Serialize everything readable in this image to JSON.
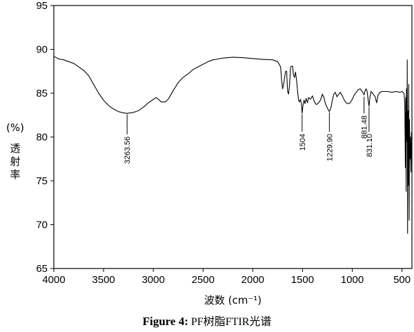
{
  "chart_data": {
    "type": "line",
    "title": "",
    "xlabel": "波数 (cm⁻¹)",
    "ylabel_unit": "(%)",
    "ylabel_chars": [
      "透",
      "射",
      "率"
    ],
    "xlim": [
      4000,
      400
    ],
    "ylim": [
      65,
      95
    ],
    "x_ticks": [
      4000,
      3500,
      3000,
      2500,
      2000,
      1500,
      1000,
      500
    ],
    "y_ticks": [
      65,
      70,
      75,
      80,
      85,
      90,
      95
    ],
    "grid": false,
    "series": [
      {
        "points": [
          [
            4000,
            89.2
          ],
          [
            3950,
            88.9
          ],
          [
            3900,
            88.8
          ],
          [
            3850,
            88.6
          ],
          [
            3800,
            88.4
          ],
          [
            3750,
            88.0
          ],
          [
            3700,
            87.6
          ],
          [
            3650,
            87.0
          ],
          [
            3600,
            86.0
          ],
          [
            3550,
            85.0
          ],
          [
            3500,
            84.2
          ],
          [
            3450,
            83.6
          ],
          [
            3400,
            83.2
          ],
          [
            3350,
            82.9
          ],
          [
            3300,
            82.75
          ],
          [
            3263,
            82.7
          ],
          [
            3200,
            82.8
          ],
          [
            3150,
            83.0
          ],
          [
            3100,
            83.4
          ],
          [
            3050,
            83.9
          ],
          [
            3000,
            84.3
          ],
          [
            2970,
            84.5
          ],
          [
            2950,
            84.3
          ],
          [
            2920,
            84.0
          ],
          [
            2880,
            84.0
          ],
          [
            2850,
            84.3
          ],
          [
            2800,
            85.3
          ],
          [
            2750,
            86.2
          ],
          [
            2700,
            86.8
          ],
          [
            2650,
            87.2
          ],
          [
            2600,
            87.7
          ],
          [
            2550,
            88.0
          ],
          [
            2500,
            88.3
          ],
          [
            2450,
            88.6
          ],
          [
            2400,
            88.8
          ],
          [
            2350,
            88.9
          ],
          [
            2300,
            89.0
          ],
          [
            2250,
            89.05
          ],
          [
            2200,
            89.1
          ],
          [
            2100,
            89.05
          ],
          [
            2000,
            88.95
          ],
          [
            1900,
            88.85
          ],
          [
            1800,
            88.8
          ],
          [
            1750,
            88.6
          ],
          [
            1720,
            88.0
          ],
          [
            1710,
            86.5
          ],
          [
            1700,
            85.5
          ],
          [
            1690,
            86.0
          ],
          [
            1680,
            86.8
          ],
          [
            1670,
            87.5
          ],
          [
            1660,
            87.5
          ],
          [
            1650,
            85.2
          ],
          [
            1640,
            84.9
          ],
          [
            1630,
            86.0
          ],
          [
            1620,
            88.0
          ],
          [
            1600,
            88.1
          ],
          [
            1590,
            87.0
          ],
          [
            1580,
            86.8
          ],
          [
            1570,
            87.4
          ],
          [
            1560,
            86.5
          ],
          [
            1550,
            85.3
          ],
          [
            1540,
            84.2
          ],
          [
            1530,
            84.0
          ],
          [
            1520,
            84.3
          ],
          [
            1510,
            83.7
          ],
          [
            1504,
            82.7
          ],
          [
            1495,
            83.6
          ],
          [
            1485,
            84.2
          ],
          [
            1475,
            83.8
          ],
          [
            1465,
            84.4
          ],
          [
            1450,
            83.9
          ],
          [
            1440,
            84.5
          ],
          [
            1420,
            84.3
          ],
          [
            1400,
            84.7
          ],
          [
            1380,
            84.0
          ],
          [
            1360,
            83.7
          ],
          [
            1340,
            83.9
          ],
          [
            1320,
            84.2
          ],
          [
            1300,
            84.9
          ],
          [
            1285,
            84.5
          ],
          [
            1270,
            83.8
          ],
          [
            1250,
            83.3
          ],
          [
            1230,
            82.9
          ],
          [
            1215,
            83.3
          ],
          [
            1200,
            84.2
          ],
          [
            1185,
            84.9
          ],
          [
            1170,
            85.1
          ],
          [
            1155,
            84.6
          ],
          [
            1140,
            84.8
          ],
          [
            1120,
            85.1
          ],
          [
            1100,
            84.7
          ],
          [
            1080,
            84.2
          ],
          [
            1060,
            83.9
          ],
          [
            1040,
            83.8
          ],
          [
            1020,
            83.9
          ],
          [
            1000,
            84.3
          ],
          [
            980,
            84.8
          ],
          [
            960,
            85.1
          ],
          [
            940,
            85.4
          ],
          [
            920,
            85.5
          ],
          [
            900,
            85.2
          ],
          [
            881,
            84.8
          ],
          [
            870,
            85.3
          ],
          [
            860,
            85.5
          ],
          [
            850,
            85.2
          ],
          [
            840,
            84.2
          ],
          [
            831,
            83.5
          ],
          [
            822,
            84.6
          ],
          [
            810,
            85.2
          ],
          [
            790,
            84.9
          ],
          [
            770,
            84.6
          ],
          [
            755,
            83.9
          ],
          [
            740,
            84.8
          ],
          [
            720,
            85.1
          ],
          [
            700,
            85.2
          ],
          [
            650,
            85.2
          ],
          [
            600,
            85.1
          ],
          [
            560,
            85.2
          ],
          [
            520,
            85.1
          ],
          [
            500,
            85.2
          ],
          [
            480,
            85.0
          ],
          [
            472,
            84.0
          ],
          [
            466,
            76.5
          ],
          [
            462,
            84.5
          ],
          [
            458,
            73.8
          ],
          [
            455,
            85.5
          ],
          [
            450,
            79.5
          ],
          [
            447,
            88.8
          ],
          [
            444,
            69.0
          ],
          [
            440,
            83.0
          ],
          [
            436,
            74.5
          ],
          [
            432,
            86.0
          ],
          [
            428,
            70.5
          ],
          [
            424,
            82.0
          ],
          [
            420,
            77.5
          ],
          [
            415,
            80.0
          ],
          [
            410,
            76.0
          ],
          [
            405,
            80.5
          ],
          [
            400,
            78.0
          ]
        ]
      }
    ],
    "peak_labels": [
      {
        "x": 3263.56,
        "label": "3263.56",
        "y_tip": 82.6,
        "y_line_end": 80.3
      },
      {
        "x": 1504,
        "label": "1504",
        "y_tip": 82.6,
        "y_line_end": 80.6
      },
      {
        "x": 1229.9,
        "label": "1229.90",
        "y_tip": 82.8,
        "y_line_end": 80.6
      },
      {
        "x": 881.48,
        "label": "881.48",
        "y_tip": 84.6,
        "y_line_end": 82.7
      },
      {
        "x": 831.1,
        "label": "831.10",
        "y_tip": 83.4,
        "y_line_end": 80.6
      }
    ]
  },
  "caption": {
    "figure_no": "Figure 4:",
    "text": " PF树脂FTIR光谱"
  }
}
